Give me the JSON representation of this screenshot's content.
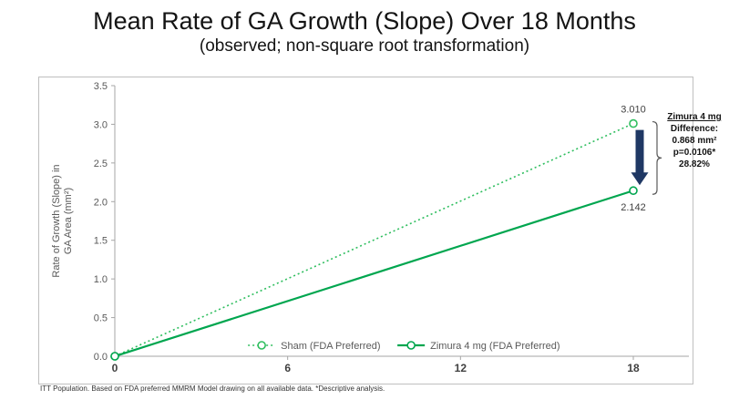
{
  "slide": {
    "title": "Mean Rate of GA Growth (Slope) Over 18 Months",
    "subtitle": "(observed; non-square root transformation)",
    "footnote": "ITT Population.  Based on FDA preferred MMRM Model drawing on all available data. *Descriptive analysis."
  },
  "annotation": {
    "heading": "Zimura 4 mg",
    "lines": [
      "Difference:",
      "0.868 mm²",
      "p=0.0106*",
      "28.82%"
    ]
  },
  "chart_data": {
    "type": "line",
    "x": [
      0,
      18
    ],
    "xticks": [
      0,
      6,
      12,
      18
    ],
    "yticks": [
      0.0,
      0.5,
      1.0,
      1.5,
      2.0,
      2.5,
      3.0,
      3.5
    ],
    "xlim": [
      0,
      18
    ],
    "ylim": [
      0,
      3.5
    ],
    "ylabel_lines": [
      "Rate of Growth (Slope) in",
      "GA Area (mm²)"
    ],
    "xlabel": "",
    "grid": false,
    "legend_position": "bottom-inside",
    "series": [
      {
        "name": "Sham (FDA Preferred)",
        "values": [
          0.0,
          3.01
        ],
        "line_style": "dotted",
        "color": "#2fbe5f",
        "end_label": "3.010",
        "end_label_position": "above"
      },
      {
        "name": "Zimura 4 mg (FDA Preferred)",
        "values": [
          0.0,
          2.142
        ],
        "line_style": "solid",
        "color": "#00a64f",
        "end_label": "2.142",
        "end_label_position": "below"
      }
    ],
    "colors": {
      "arrow": "#1f3864",
      "axis": "#a6a6a6",
      "tick_text": "#595959",
      "value_label": "#404040",
      "x_tick_text": "#404040",
      "legend_text": "#595959",
      "brace": "#595959"
    }
  }
}
